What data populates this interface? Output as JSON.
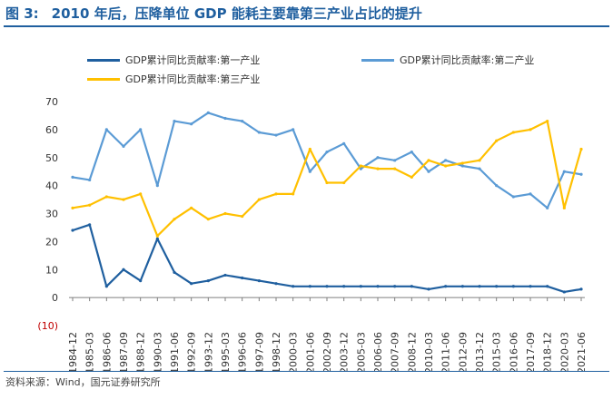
{
  "header": {
    "figure_number": "图 3:",
    "title": "2010 年后，压降单位 GDP 能耗主要靠第三产业占比的提升"
  },
  "footer": {
    "source": "资料来源：Wind，国元证券研究所"
  },
  "colors": {
    "primary": "#1f5f9f",
    "secondary": "#5b9bd5",
    "tertiary": "#ffc000",
    "text": "#333333",
    "negative": "#c00000"
  },
  "chart_data": {
    "type": "line",
    "ylim": [
      -10,
      70
    ],
    "yticks": [
      "(10)",
      "0",
      "10",
      "20",
      "30",
      "40",
      "50",
      "60",
      "70"
    ],
    "grid": false,
    "legend_position": "top",
    "categories": [
      "1984-12",
      "1985-03",
      "1986-06",
      "1987-09",
      "1988-12",
      "1990-03",
      "1991-06",
      "1992-09",
      "1993-12",
      "1995-03",
      "1996-06",
      "1997-09",
      "1998-12",
      "2000-03",
      "2001-06",
      "2002-09",
      "2003-12",
      "2005-03",
      "2006-06",
      "2007-09",
      "2008-12",
      "2010-03",
      "2011-06",
      "2012-09",
      "2013-12",
      "2015-03",
      "2016-06",
      "2017-09",
      "2018-12",
      "2020-03",
      "2021-06"
    ],
    "series": [
      {
        "name": "GDP累计同比贡献率:第一产业",
        "color": "#1f5f9f",
        "values": [
          24,
          26,
          4,
          10,
          6,
          21,
          9,
          5,
          6,
          8,
          7,
          6,
          5,
          4,
          4,
          4,
          4,
          4,
          4,
          4,
          4,
          3,
          4,
          4,
          4,
          4,
          4,
          4,
          4,
          2,
          3
        ]
      },
      {
        "name": "GDP累计同比贡献率:第二产业",
        "color": "#5b9bd5",
        "values": [
          43,
          42,
          60,
          54,
          60,
          40,
          63,
          62,
          66,
          64,
          63,
          59,
          58,
          60,
          45,
          52,
          55,
          46,
          50,
          49,
          52,
          45,
          49,
          47,
          46,
          40,
          36,
          37,
          32,
          45,
          44
        ]
      },
      {
        "name": "GDP累计同比贡献率:第三产业",
        "color": "#ffc000",
        "values": [
          32,
          33,
          36,
          35,
          37,
          22,
          28,
          32,
          28,
          30,
          29,
          35,
          37,
          37,
          53,
          41,
          41,
          47,
          46,
          46,
          43,
          49,
          47,
          48,
          49,
          56,
          59,
          60,
          63,
          32,
          53
        ]
      }
    ]
  }
}
